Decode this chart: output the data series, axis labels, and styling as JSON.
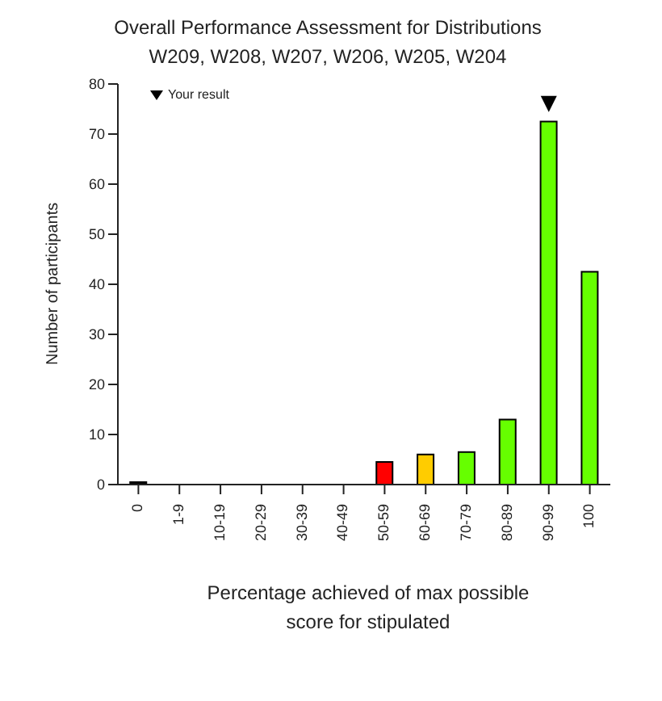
{
  "chart_data": {
    "type": "bar",
    "title": "Overall Performance Assessment for Distributions",
    "subtitle": "W209, W208, W207, W206, W205, W204",
    "xlabel": "Percentage achieved of max possible score for stipulated",
    "ylabel": "Number of participants",
    "categories": [
      "0",
      "1-9",
      "10-19",
      "20-29",
      "30-39",
      "40-49",
      "50-59",
      "60-69",
      "70-79",
      "80-89",
      "90-99",
      "100"
    ],
    "series": [
      {
        "values": [
          0.5,
          0,
          0,
          0,
          0,
          0,
          4.5,
          6,
          6.5,
          13,
          72.5,
          42.5
        ],
        "colors": [
          "#000000",
          "#66ff00",
          "#66ff00",
          "#66ff00",
          "#66ff00",
          "#66ff00",
          "#ff0000",
          "#ffcc00",
          "#66ff00",
          "#66ff00",
          "#66ff00",
          "#66ff00"
        ]
      },
      {
        "type": "scatter",
        "name": "Your result",
        "color": "#000000",
        "marker": "triangle",
        "x": [
          "90-99"
        ],
        "values": [
          76
        ]
      }
    ],
    "ylim": [
      0,
      80
    ],
    "yticks": [
      0,
      10,
      20,
      30,
      40,
      50,
      60,
      70,
      80
    ],
    "grid": false,
    "legend": "top left"
  }
}
